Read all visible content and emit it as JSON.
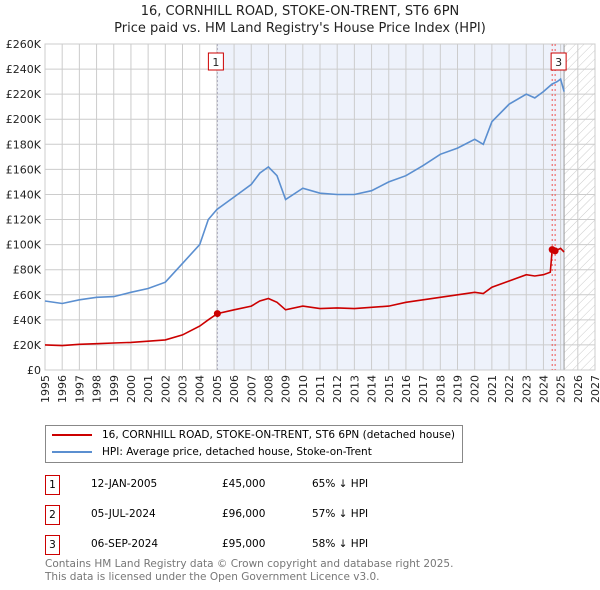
{
  "chart_data": {
    "type": "line",
    "title": "16, CORNHILL ROAD, STOKE-ON-TRENT, ST6 6PN",
    "subtitle": "Price paid vs. HM Land Registry's House Price Index (HPI)",
    "xlim": [
      1995,
      2027
    ],
    "ylim": [
      0,
      260000
    ],
    "x_ticks": [
      "1995",
      "1996",
      "1997",
      "1998",
      "1999",
      "2000",
      "2001",
      "2002",
      "2003",
      "2004",
      "2005",
      "2006",
      "2007",
      "2008",
      "2009",
      "2010",
      "2011",
      "2012",
      "2013",
      "2014",
      "2015",
      "2016",
      "2017",
      "2018",
      "2019",
      "2020",
      "2021",
      "2022",
      "2023",
      "2024",
      "2025",
      "2026",
      "2027"
    ],
    "y_ticks": [
      {
        "v": 0,
        "label": "£0"
      },
      {
        "v": 20000,
        "label": "£20K"
      },
      {
        "v": 40000,
        "label": "£40K"
      },
      {
        "v": 60000,
        "label": "£60K"
      },
      {
        "v": 80000,
        "label": "£80K"
      },
      {
        "v": 100000,
        "label": "£100K"
      },
      {
        "v": 120000,
        "label": "£120K"
      },
      {
        "v": 140000,
        "label": "£140K"
      },
      {
        "v": 160000,
        "label": "£160K"
      },
      {
        "v": 180000,
        "label": "£180K"
      },
      {
        "v": 200000,
        "label": "£200K"
      },
      {
        "v": 220000,
        "label": "£220K"
      },
      {
        "v": 240000,
        "label": "£240K"
      },
      {
        "v": 260000,
        "label": "£260K"
      }
    ],
    "grid": true,
    "shaded_range": [
      2005.03,
      2025.2
    ],
    "forecast_hatch_from": 2025.2,
    "series": [
      {
        "name": "16, CORNHILL ROAD, STOKE-ON-TRENT, ST6 6PN (detached house)",
        "color": "#cc0000",
        "x": [
          1995,
          1996,
          1997,
          1998,
          1999,
          2000,
          2001,
          2002,
          2003,
          2004,
          2004.5,
          2005.03,
          2006,
          2007,
          2007.5,
          2008,
          2008.5,
          2009,
          2010,
          2011,
          2012,
          2013,
          2014,
          2015,
          2016,
          2017,
          2018,
          2019,
          2020,
          2020.5,
          2021,
          2022,
          2023,
          2023.5,
          2024,
          2024.4,
          2024.51,
          2024.68,
          2025,
          2025.2
        ],
        "y": [
          20000,
          19500,
          20500,
          21000,
          21500,
          22000,
          23000,
          24000,
          28000,
          35000,
          40000,
          45000,
          48000,
          51000,
          55000,
          57000,
          54000,
          48000,
          51000,
          49000,
          49500,
          49000,
          50000,
          51000,
          54000,
          56000,
          58000,
          60000,
          62000,
          61000,
          66000,
          71000,
          76000,
          75000,
          76000,
          78000,
          96000,
          95000,
          97000,
          94000
        ]
      },
      {
        "name": "HPI: Average price, detached house, Stoke-on-Trent",
        "color": "#5b8fd0",
        "x": [
          1995,
          1996,
          1997,
          1998,
          1999,
          2000,
          2001,
          2002,
          2003,
          2004,
          2004.5,
          2005,
          2006,
          2007,
          2007.5,
          2008,
          2008.5,
          2009,
          2010,
          2011,
          2012,
          2013,
          2014,
          2015,
          2016,
          2017,
          2018,
          2019,
          2020,
          2020.5,
          2021,
          2022,
          2023,
          2023.5,
          2024,
          2024.5,
          2024.8,
          2025,
          2025.2
        ],
        "y": [
          55000,
          53000,
          56000,
          58000,
          58500,
          62000,
          65000,
          70000,
          85000,
          100000,
          120000,
          128000,
          138000,
          148000,
          157000,
          162000,
          155000,
          136000,
          145000,
          141000,
          140000,
          140000,
          143000,
          150000,
          155000,
          163000,
          172000,
          177000,
          184000,
          180000,
          198000,
          212000,
          220000,
          217000,
          222000,
          228000,
          230000,
          232000,
          222000
        ]
      }
    ],
    "sales": [
      {
        "label": "1",
        "x": 2005.03,
        "price": 45000,
        "date": "12-JAN-2005",
        "price_text": "£45,000",
        "hpi_text": "65% ↓ HPI"
      },
      {
        "label": "2",
        "x": 2024.51,
        "price": 96000,
        "date": "05-JUL-2024",
        "price_text": "£96,000",
        "hpi_text": "57% ↓ HPI"
      },
      {
        "label": "3",
        "x": 2024.68,
        "price": 95000,
        "date": "06-SEP-2024",
        "price_text": "£95,000",
        "hpi_text": "58% ↓ HPI"
      }
    ]
  },
  "legend": {
    "property": "16, CORNHILL ROAD, STOKE-ON-TRENT, ST6 6PN (detached house)",
    "hpi": "HPI: Average price, detached house, Stoke-on-Trent"
  },
  "footer": {
    "line1": "Contains HM Land Registry data © Crown copyright and database right 2025.",
    "line2": "This data is licensed under the Open Government Licence v3.0."
  }
}
